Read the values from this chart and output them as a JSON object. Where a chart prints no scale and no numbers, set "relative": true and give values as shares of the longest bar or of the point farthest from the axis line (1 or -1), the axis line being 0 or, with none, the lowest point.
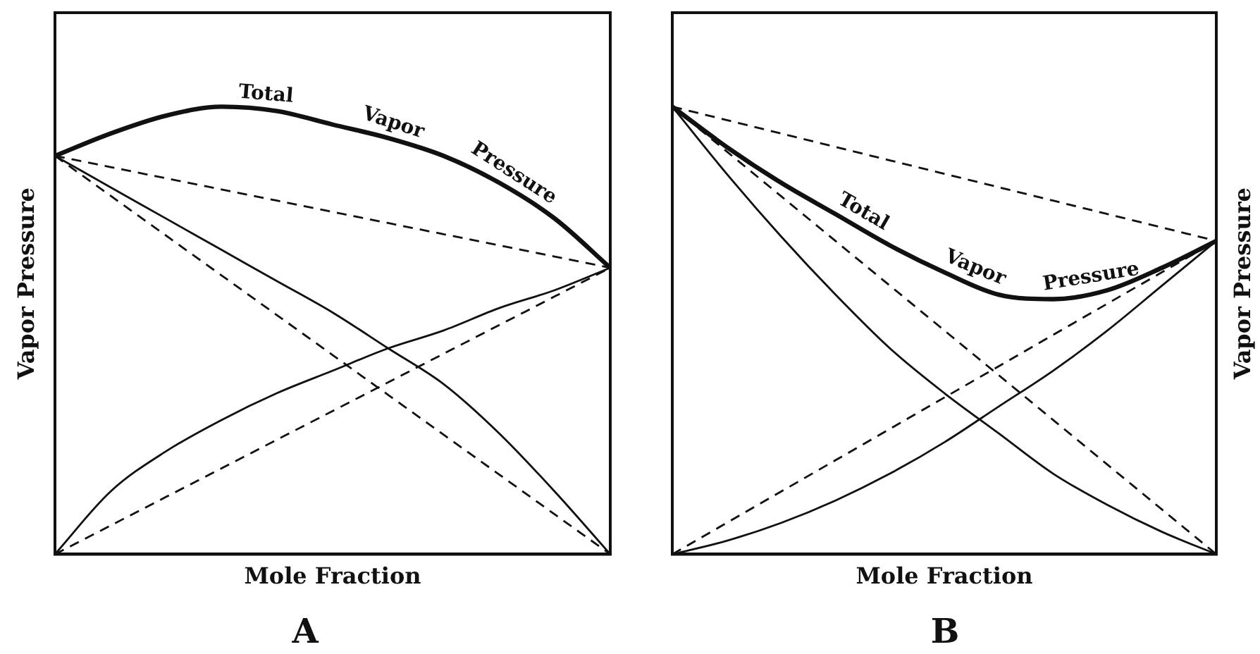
{
  "chart_data": [
    {
      "type": "line",
      "title": "A",
      "xlabel": "Mole Fraction",
      "ylabel": "Vapor Pressure",
      "relative": true,
      "categories": [
        null,
        null,
        null,
        null,
        null,
        null,
        null,
        null,
        null,
        null,
        null
      ],
      "series": [
        {
          "name": "Total Vapor Pressure",
          "color": "#111111",
          "values": [
            0.89,
            0.94,
            0.98,
            1.0,
            0.99,
            0.96,
            0.93,
            0.89,
            0.83,
            0.75,
            0.64
          ]
        },
        {
          "color": "#111111",
          "values": [
            0.89,
            0.82,
            0.75,
            0.68,
            0.61,
            0.54,
            0.46,
            0.38,
            0.27,
            0.14,
            0
          ]
        },
        {
          "color": "#111111",
          "values": [
            0,
            0.14,
            0.23,
            0.3,
            0.36,
            0.41,
            0.46,
            0.5,
            0.55,
            0.59,
            0.64
          ]
        },
        {
          "color": "#111111",
          "line_style": "dashed",
          "values": [
            0.89,
            0.865,
            0.84,
            0.815,
            0.79,
            0.765,
            0.74,
            0.715,
            0.69,
            0.665,
            0.64
          ]
        },
        {
          "color": "#111111",
          "line_style": "dashed",
          "values": [
            0.89,
            0.801,
            0.712,
            0.623,
            0.534,
            0.445,
            0.356,
            0.267,
            0.178,
            0.089,
            0
          ]
        },
        {
          "color": "#111111",
          "line_style": "dashed",
          "values": [
            0,
            0.064,
            0.128,
            0.192,
            0.256,
            0.32,
            0.384,
            0.448,
            0.512,
            0.576,
            0.64
          ]
        }
      ]
    },
    {
      "type": "line",
      "title": "B",
      "xlabel": "Mole Fraction",
      "y2label": "Vapor Pressure",
      "relative": true,
      "categories": [
        null,
        null,
        null,
        null,
        null,
        null,
        null,
        null,
        null,
        null,
        null
      ],
      "series": [
        {
          "name": "Total Vapor Pressure",
          "color": "#111111",
          "values": [
            1.0,
            0.91,
            0.83,
            0.76,
            0.69,
            0.63,
            0.58,
            0.57,
            0.59,
            0.64,
            0.7
          ]
        },
        {
          "color": "#111111",
          "values": [
            1.0,
            0.85,
            0.71,
            0.58,
            0.46,
            0.36,
            0.27,
            0.18,
            0.11,
            0.05,
            0
          ]
        },
        {
          "color": "#111111",
          "values": [
            0,
            0.03,
            0.07,
            0.12,
            0.18,
            0.25,
            0.33,
            0.41,
            0.5,
            0.6,
            0.7
          ]
        },
        {
          "color": "#111111",
          "line_style": "dashed",
          "values": [
            1.0,
            0.97,
            0.94,
            0.91,
            0.88,
            0.85,
            0.82,
            0.79,
            0.76,
            0.73,
            0.7
          ]
        },
        {
          "color": "#111111",
          "line_style": "dashed",
          "values": [
            1.0,
            0.9,
            0.8,
            0.7,
            0.6,
            0.5,
            0.4,
            0.3,
            0.2,
            0.1,
            0
          ]
        },
        {
          "color": "#111111",
          "line_style": "dashed",
          "values": [
            0,
            0.07,
            0.14,
            0.21,
            0.28,
            0.35,
            0.42,
            0.49,
            0.56,
            0.63,
            0.7
          ]
        }
      ]
    }
  ]
}
